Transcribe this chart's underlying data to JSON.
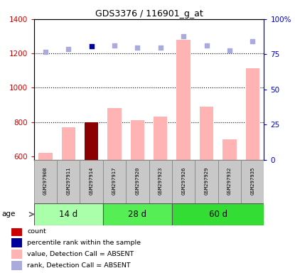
{
  "title": "GDS3376 / 116901_g_at",
  "samples": [
    "GSM297908",
    "GSM297911",
    "GSM297914",
    "GSM297917",
    "GSM297920",
    "GSM297923",
    "GSM297926",
    "GSM297929",
    "GSM297932",
    "GSM297935"
  ],
  "bar_values": [
    620,
    770,
    800,
    880,
    810,
    830,
    1280,
    890,
    700,
    1115
  ],
  "bar_colors": [
    "#FFB3B3",
    "#FFB3B3",
    "#8B0000",
    "#FFB3B3",
    "#FFB3B3",
    "#FFB3B3",
    "#FFB3B3",
    "#FFB3B3",
    "#FFB3B3",
    "#FFB3B3"
  ],
  "rank_dots": [
    1210,
    1225,
    1240,
    1248,
    1235,
    1232,
    1300,
    1248,
    1215,
    1270
  ],
  "rank_dot_colors": [
    "#AAAADD",
    "#AAAADD",
    "#000099",
    "#AAAADD",
    "#AAAADD",
    "#AAAADD",
    "#AAAADD",
    "#AAAADD",
    "#AAAADD",
    "#AAAADD"
  ],
  "ylim_left": [
    580,
    1400
  ],
  "ylim_right": [
    0,
    100
  ],
  "yticks_left": [
    600,
    800,
    1000,
    1200,
    1400
  ],
  "yticks_right": [
    0,
    25,
    50,
    75,
    100
  ],
  "ytick_labels_right": [
    "0",
    "25",
    "50",
    "75",
    "100%"
  ],
  "age_groups": [
    {
      "label": "14 d",
      "start": 0,
      "end": 3,
      "color": "#AAFFAA"
    },
    {
      "label": "28 d",
      "start": 3,
      "end": 6,
      "color": "#55EE55"
    },
    {
      "label": "60 d",
      "start": 6,
      "end": 10,
      "color": "#33DD33"
    }
  ],
  "legend_items": [
    {
      "color": "#CC0000",
      "label": "count"
    },
    {
      "color": "#000099",
      "label": "percentile rank within the sample"
    },
    {
      "color": "#FFB3B3",
      "label": "value, Detection Call = ABSENT"
    },
    {
      "color": "#AAAADD",
      "label": "rank, Detection Call = ABSENT"
    }
  ],
  "left_tick_color": "#CC0000",
  "right_tick_color": "#0000CC",
  "bar_width": 0.6,
  "dotted_gridlines": [
    800,
    1000,
    1200
  ],
  "gray_box_color": "#C8C8C8",
  "gray_box_edge": "#888888"
}
